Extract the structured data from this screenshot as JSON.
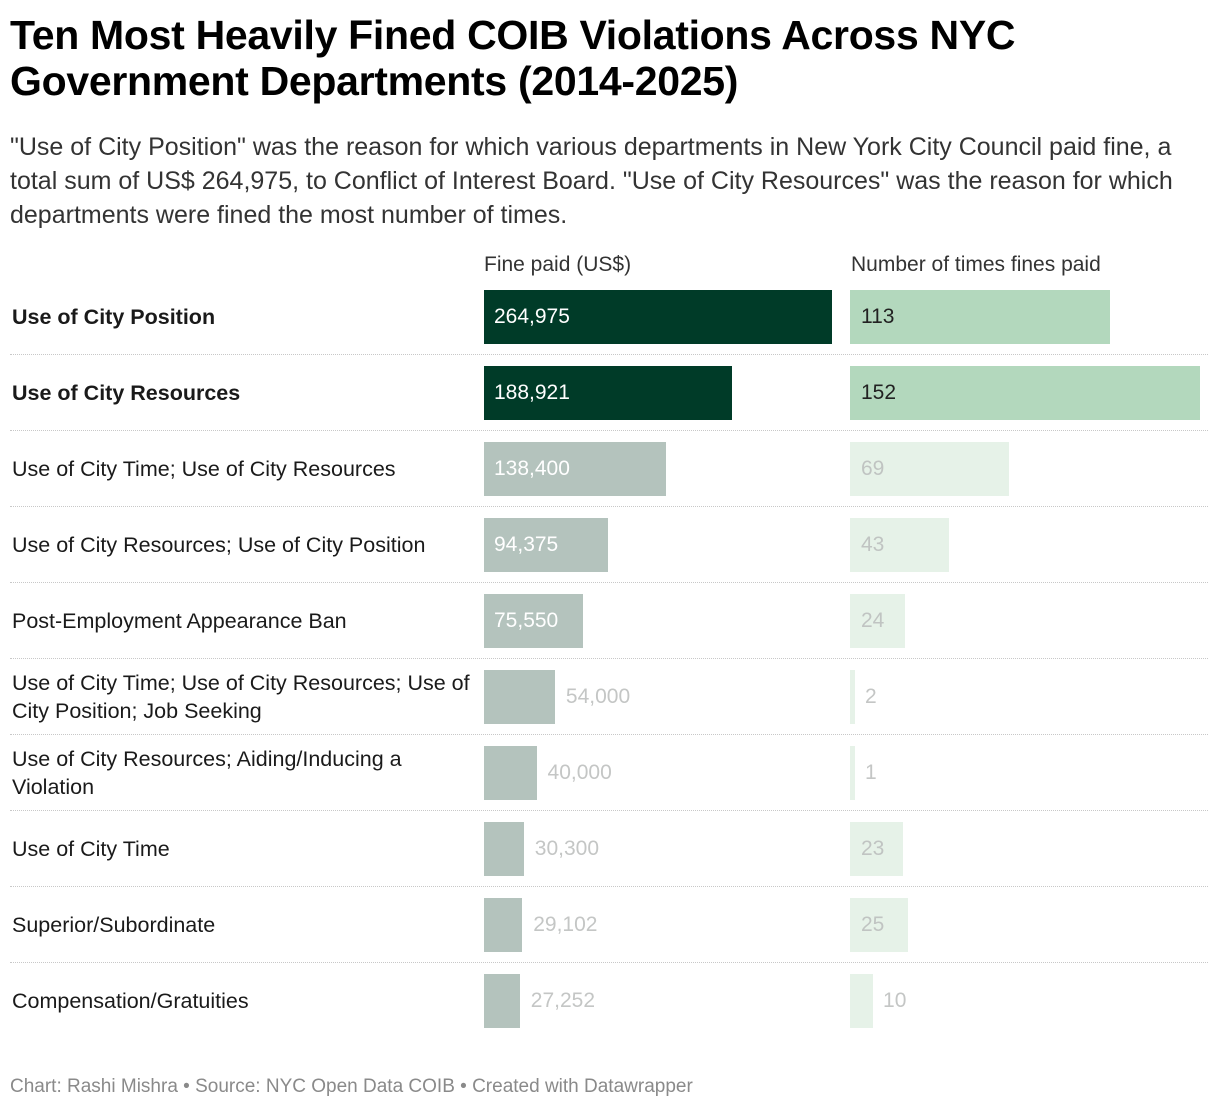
{
  "header": {
    "title": "Ten Most Heavily Fined COIB Violations Across NYC Government Departments (2014-2025)",
    "subtitle": "\"Use of City Position\" was the reason for which various departments in New York City Council paid fine, a total sum of US$ 264,975, to Conflict of Interest Board. \"Use of City Resources\" was the reason for which departments were fined the most number of times."
  },
  "columns": {
    "fine_label": "Fine paid (US$)",
    "count_label": "Number of times fines paid"
  },
  "footer": {
    "text": "Chart: Rashi Mishra • Source: NYC Open Data COIB • Created with Datawrapper"
  },
  "colors": {
    "fine_highlight": "#003b28",
    "fine_muted": "#b4c3bd",
    "count_highlight": "#b3d8bd",
    "count_muted": "#e6f2e8",
    "label_on_dark": "#ffffff",
    "label_on_light": "#222222",
    "label_muted": "#c0c4c2",
    "label_outside": "#c4c6c5"
  },
  "chart_data": {
    "type": "table",
    "columns": [
      "Violation",
      "Fine paid (US$)",
      "Number of times fines paid"
    ],
    "rows": [
      {
        "label": "Use of City Position",
        "fine": 264975,
        "fine_text": "264,975",
        "count": 113,
        "count_text": "113",
        "highlight": true
      },
      {
        "label": "Use of City Resources",
        "fine": 188921,
        "fine_text": "188,921",
        "count": 152,
        "count_text": "152",
        "highlight": true
      },
      {
        "label": "Use of City Time; Use of City Resources",
        "fine": 138400,
        "fine_text": "138,400",
        "count": 69,
        "count_text": "69",
        "highlight": false
      },
      {
        "label": "Use of City Resources; Use of City Position",
        "fine": 94375,
        "fine_text": "94,375",
        "count": 43,
        "count_text": "43",
        "highlight": false
      },
      {
        "label": "Post-Employment Appearance Ban",
        "fine": 75550,
        "fine_text": "75,550",
        "count": 24,
        "count_text": "24",
        "highlight": false
      },
      {
        "label": "Use of City Time; Use of City Resources; Use of City Position; Job Seeking",
        "fine": 54000,
        "fine_text": "54,000",
        "count": 2,
        "count_text": "2",
        "highlight": false
      },
      {
        "label": "Use of City Resources; Aiding/Inducing a Violation",
        "fine": 40000,
        "fine_text": "40,000",
        "count": 1,
        "count_text": "1",
        "highlight": false
      },
      {
        "label": "Use of City Time",
        "fine": 30300,
        "fine_text": "30,300",
        "count": 23,
        "count_text": "23",
        "highlight": false
      },
      {
        "label": "Superior/Subordinate",
        "fine": 29102,
        "fine_text": "29,102",
        "count": 25,
        "count_text": "25",
        "highlight": false
      },
      {
        "label": "Compensation/Gratuities",
        "fine": 27252,
        "fine_text": "27,252",
        "count": 10,
        "count_text": "10",
        "highlight": false
      }
    ],
    "fine_max": 264975,
    "count_max": 152
  }
}
